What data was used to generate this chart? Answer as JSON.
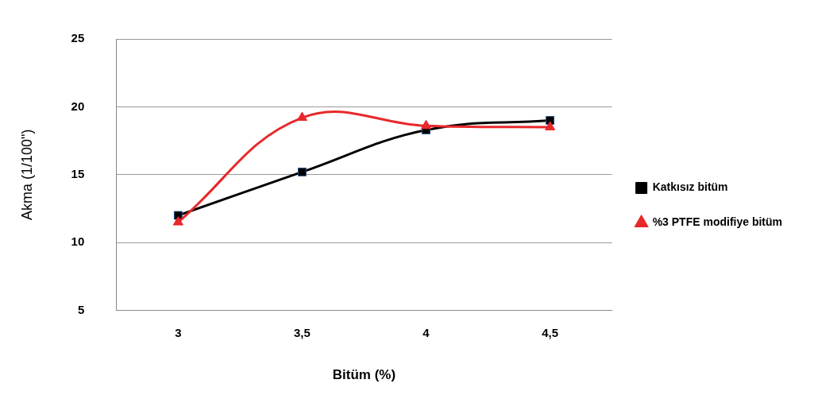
{
  "chart_data": {
    "type": "line",
    "xlabel": "Bitüm (%)",
    "ylabel": "Akma (1/100\")",
    "categories": [
      "3",
      "3,5",
      "4",
      "4,5"
    ],
    "series": [
      {
        "name": "Katkısız bitüm",
        "color": "#000000",
        "marker": "square",
        "values": [
          12,
          15.2,
          18.3,
          19
        ]
      },
      {
        "name": "%3 PTFE modifiye bitüm",
        "color": "#e8282b",
        "marker": "triangle",
        "values": [
          11.5,
          19.2,
          18.6,
          18.5
        ]
      }
    ],
    "ylim": [
      5,
      25
    ],
    "yticks": [
      5,
      10,
      15,
      20,
      25
    ],
    "grid": "y",
    "legend": "right"
  }
}
